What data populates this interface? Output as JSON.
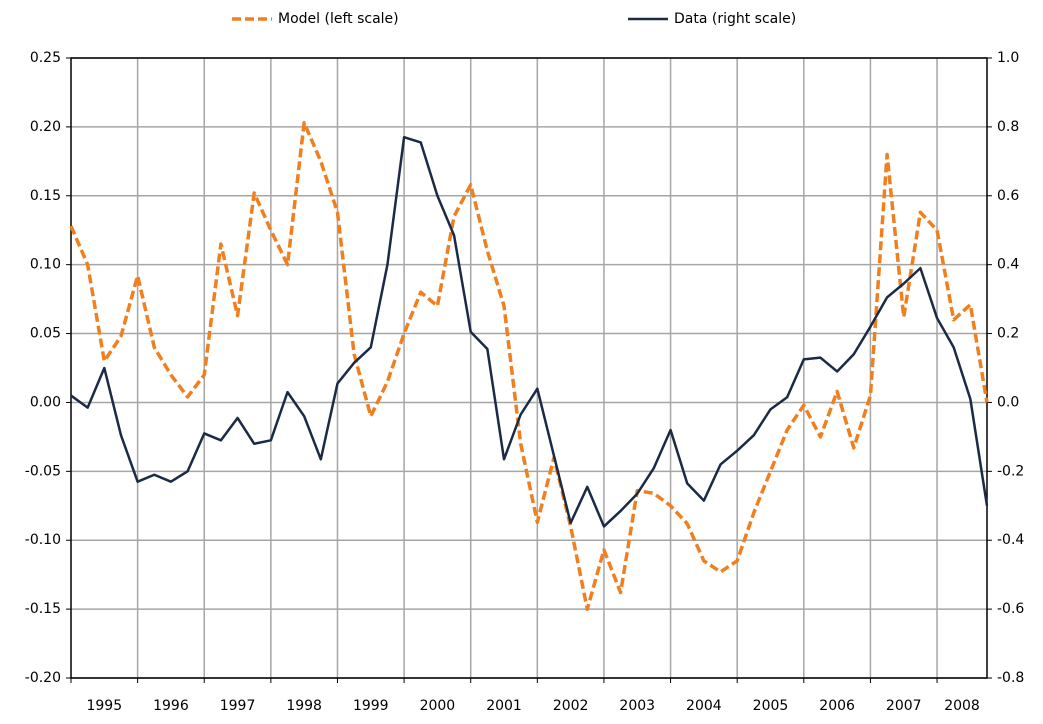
{
  "chart_data": {
    "type": "line",
    "categories": [
      "1995",
      null,
      null,
      null,
      "1996",
      null,
      null,
      null,
      "1997",
      null,
      null,
      null,
      "1998",
      null,
      null,
      null,
      "1999",
      null,
      null,
      null,
      "2000",
      null,
      null,
      null,
      "2001",
      null,
      null,
      null,
      "2002",
      null,
      null,
      null,
      "2003",
      null,
      null,
      null,
      "2004",
      null,
      null,
      null,
      "2005",
      null,
      null,
      null,
      "2006",
      null,
      null,
      null,
      "2007",
      null,
      null,
      null,
      "2008",
      null,
      null,
      null
    ],
    "series": [
      {
        "name": "Model (left scale)",
        "color": "#f07f20",
        "linestyle": "dashed",
        "values": [
          0.128,
          0.1,
          0.03,
          0.048,
          0.092,
          0.04,
          0.02,
          0.004,
          0.02,
          0.115,
          0.063,
          0.152,
          0.125,
          0.1,
          0.203,
          0.175,
          0.138,
          0.035,
          -0.01,
          0.015,
          0.05,
          0.08,
          0.07,
          0.135,
          0.158,
          0.11,
          0.07,
          -0.03,
          -0.087,
          -0.04,
          -0.09,
          -0.15,
          -0.107,
          -0.138,
          -0.064,
          -0.066,
          -0.075,
          -0.088,
          -0.115,
          -0.123,
          -0.115,
          -0.08,
          -0.05,
          -0.02,
          -0.002,
          -0.025,
          0.008,
          -0.033,
          0.005,
          0.18,
          0.062,
          0.138,
          0.125,
          0.06,
          0.071,
          0.0
        ]
      },
      {
        "name": "Data (right scale)",
        "color": "#1b2a45",
        "linestyle": "solid",
        "axis": "y2",
        "values": [
          0.02,
          -0.015,
          0.1,
          -0.095,
          -0.23,
          -0.21,
          -0.23,
          -0.2,
          -0.09,
          -0.11,
          -0.045,
          -0.12,
          -0.11,
          0.03,
          -0.04,
          -0.165,
          0.055,
          0.115,
          0.16,
          0.4,
          0.77,
          0.755,
          0.6,
          0.485,
          0.205,
          0.155,
          -0.165,
          -0.035,
          0.04,
          -0.155,
          -0.35,
          -0.245,
          -0.36,
          -0.315,
          -0.265,
          -0.19,
          -0.08,
          -0.235,
          -0.285,
          -0.18,
          -0.14,
          -0.095,
          -0.02,
          0.015,
          0.125,
          0.13,
          0.09,
          0.14,
          0.22,
          0.305,
          0.345,
          0.39,
          0.245,
          0.16,
          0.01,
          -0.3
        ]
      }
    ],
    "ylim": [
      -0.2,
      0.25
    ],
    "yticks": [
      {
        "value": -0.2,
        "label": "-0.20"
      },
      -0.15,
      {
        "value": -0.1,
        "label": "-0.10"
      },
      -0.05,
      {
        "value": 0,
        "label": "0.00"
      },
      0.05,
      {
        "value": 0.1,
        "label": "0.10"
      },
      0.15,
      {
        "value": 0.2,
        "label": "0.20"
      },
      0.25
    ],
    "y2lim": [
      -0.8,
      1.0
    ],
    "y2ticks": [
      -0.8,
      -0.6,
      -0.4,
      -0.2,
      {
        "value": 0,
        "label": "0.0"
      },
      0.2,
      0.4,
      0.6,
      0.8,
      {
        "value": 1,
        "label": "1.0"
      }
    ],
    "grid": true,
    "legend": "top"
  }
}
